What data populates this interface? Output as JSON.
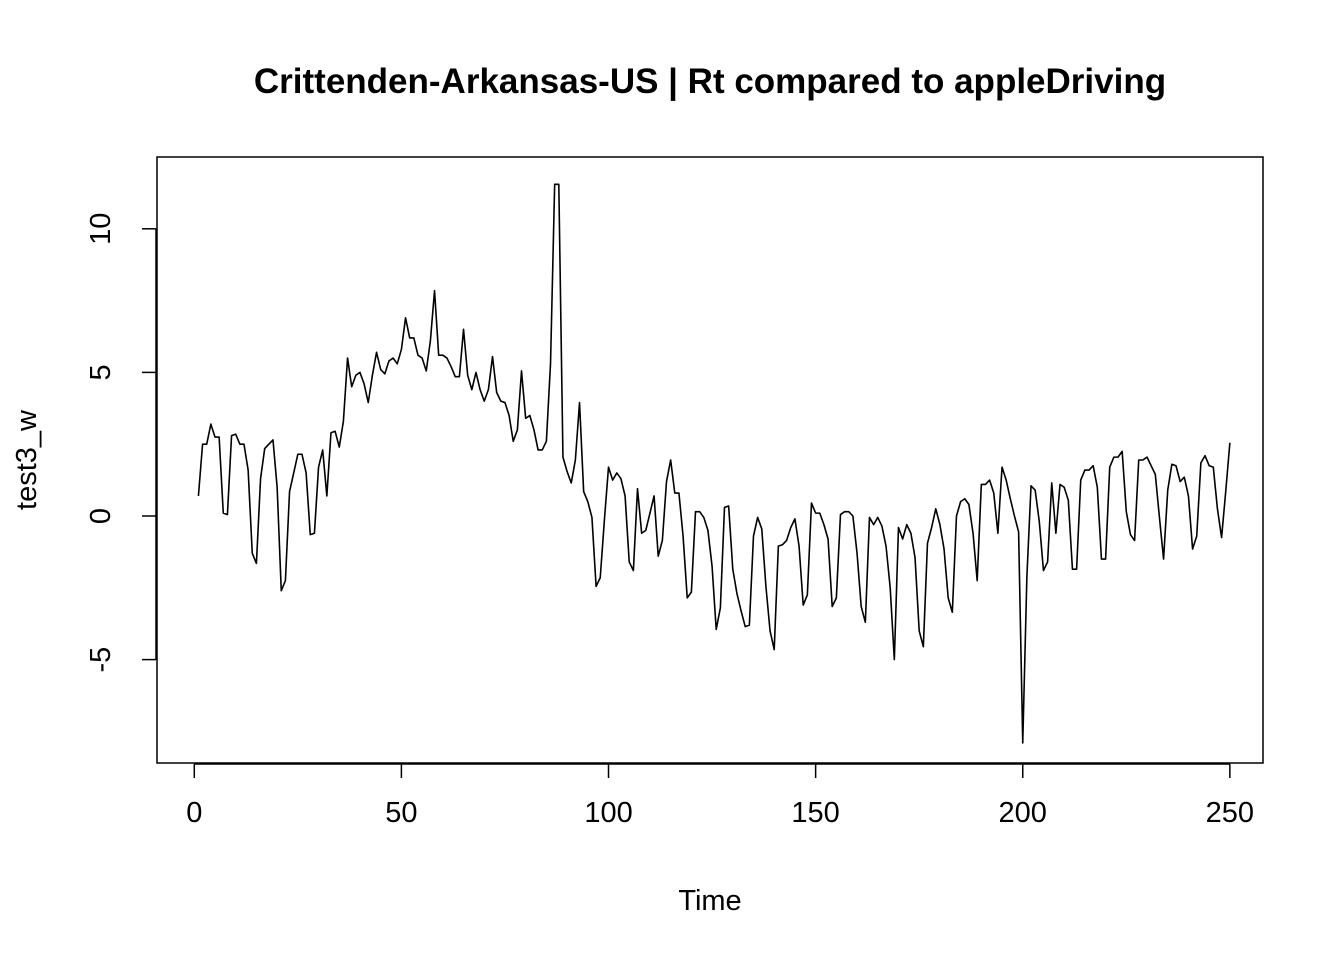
{
  "chart_data": {
    "type": "line",
    "title": "Crittenden-Arkansas-US | Rt compared to appleDriving",
    "xlabel": "Time",
    "ylabel": "test3_w",
    "xlim": [
      -9,
      258
    ],
    "ylim": [
      -8.6,
      12.5
    ],
    "x_ticks": [
      0,
      50,
      100,
      150,
      200,
      250
    ],
    "x_tick_labels": [
      "0",
      "50",
      "100",
      "150",
      "200",
      "250"
    ],
    "y_ticks": [
      -5,
      0,
      5,
      10
    ],
    "y_tick_labels": [
      "-5",
      "0",
      "5",
      "10"
    ],
    "grid": false,
    "legend": "none",
    "line_color": "#000000",
    "series": [
      {
        "x_start": 1,
        "values": [
          0.7,
          2.5,
          2.5,
          3.2,
          2.75,
          2.75,
          0.1,
          0.05,
          2.8,
          2.85,
          2.5,
          2.5,
          1.6,
          -1.3,
          -1.65,
          1.3,
          2.35,
          2.5,
          2.65,
          1.0,
          -2.6,
          -2.25,
          0.85,
          1.5,
          2.15,
          2.15,
          1.5,
          -0.65,
          -0.6,
          1.7,
          2.3,
          0.7,
          2.9,
          2.95,
          2.4,
          3.3,
          5.5,
          4.5,
          4.9,
          5.0,
          4.6,
          3.95,
          4.9,
          5.7,
          5.1,
          4.95,
          5.4,
          5.5,
          5.3,
          5.8,
          6.9,
          6.2,
          6.2,
          5.6,
          5.5,
          5.05,
          6.1,
          7.85,
          5.6,
          5.6,
          5.5,
          5.2,
          4.85,
          4.85,
          6.5,
          4.9,
          4.4,
          5.0,
          4.4,
          4.0,
          4.4,
          5.55,
          4.3,
          4.0,
          3.95,
          3.5,
          2.6,
          3.0,
          5.05,
          3.4,
          3.5,
          3.0,
          2.3,
          2.3,
          2.6,
          5.3,
          11.55,
          11.55,
          2.05,
          1.55,
          1.15,
          1.95,
          3.95,
          0.85,
          0.5,
          -0.05,
          -2.45,
          -2.15,
          -0.15,
          1.7,
          1.25,
          1.5,
          1.3,
          0.7,
          -1.6,
          -1.9,
          0.95,
          -0.6,
          -0.5,
          0.1,
          0.7,
          -1.4,
          -0.85,
          1.2,
          1.95,
          0.8,
          0.8,
          -0.7,
          -2.85,
          -2.65,
          0.15,
          0.15,
          -0.05,
          -0.5,
          -1.75,
          -3.95,
          -3.2,
          0.3,
          0.35,
          -1.85,
          -2.7,
          -3.3,
          -3.85,
          -3.8,
          -0.7,
          -0.05,
          -0.45,
          -2.45,
          -4.0,
          -4.65,
          -1.05,
          -1.0,
          -0.85,
          -0.4,
          -0.1,
          -1.05,
          -3.1,
          -2.75,
          0.45,
          0.1,
          0.1,
          -0.3,
          -0.8,
          -3.15,
          -2.85,
          0.05,
          0.15,
          0.15,
          0.0,
          -1.3,
          -3.15,
          -3.7,
          -0.05,
          -0.3,
          -0.05,
          -0.35,
          -1.05,
          -2.5,
          -5.0,
          -0.4,
          -0.8,
          -0.3,
          -0.6,
          -1.45,
          -4.0,
          -4.55,
          -0.95,
          -0.4,
          0.25,
          -0.3,
          -1.15,
          -2.85,
          -3.35,
          0.0,
          0.5,
          0.6,
          0.4,
          -0.6,
          -2.25,
          1.1,
          1.1,
          1.25,
          0.8,
          -0.6,
          1.7,
          1.25,
          0.6,
          0.0,
          -0.55,
          -7.9,
          -2.1,
          1.05,
          0.9,
          -0.2,
          -1.9,
          -1.6,
          1.15,
          -0.6,
          1.1,
          1.0,
          0.55,
          -1.85,
          -1.85,
          1.25,
          1.6,
          1.6,
          1.75,
          1.0,
          -1.5,
          -1.5,
          1.7,
          2.05,
          2.05,
          2.25,
          0.15,
          -0.65,
          -0.85,
          1.95,
          1.95,
          2.05,
          1.75,
          1.45,
          -0.05,
          -1.5,
          0.9,
          1.8,
          1.75,
          1.2,
          1.35,
          0.7,
          -1.15,
          -0.7,
          1.85,
          2.1,
          1.75,
          1.7,
          0.25,
          -0.75,
          0.85,
          2.55
        ]
      }
    ]
  }
}
